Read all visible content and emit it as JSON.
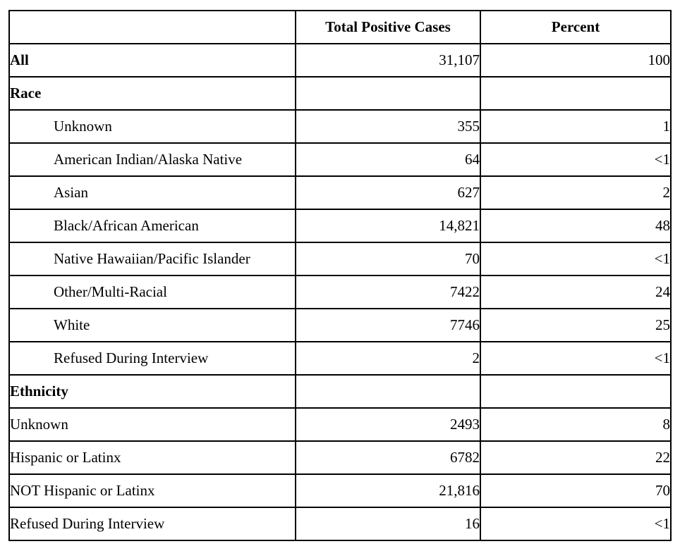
{
  "table": {
    "columns": [
      "",
      "Total Positive Cases",
      "Percent"
    ],
    "rows": [
      {
        "label": "All",
        "cases": "31,107",
        "percent": "100",
        "style": "bold"
      },
      {
        "label": "Race",
        "cases": "",
        "percent": "",
        "style": "section"
      },
      {
        "label": "Unknown",
        "cases": "355",
        "percent": "1",
        "style": "indent"
      },
      {
        "label": "American Indian/Alaska Native",
        "cases": "64",
        "percent": "<1",
        "style": "indent"
      },
      {
        "label": "Asian",
        "cases": "627",
        "percent": "2",
        "style": "indent"
      },
      {
        "label": "Black/African American",
        "cases": "14,821",
        "percent": "48",
        "style": "indent"
      },
      {
        "label": "Native Hawaiian/Pacific Islander",
        "cases": "70",
        "percent": "<1",
        "style": "indent"
      },
      {
        "label": "Other/Multi-Racial",
        "cases": "7422",
        "percent": "24",
        "style": "indent"
      },
      {
        "label": "White",
        "cases": "7746",
        "percent": "25",
        "style": "indent"
      },
      {
        "label": "Refused During Interview",
        "cases": "2",
        "percent": "<1",
        "style": "indent"
      },
      {
        "label": "Ethnicity",
        "cases": "",
        "percent": "",
        "style": "section"
      },
      {
        "label": "Unknown",
        "cases": "2493",
        "percent": "8",
        "style": "plain"
      },
      {
        "label": "Hispanic or Latinx",
        "cases": "6782",
        "percent": "22",
        "style": "plain"
      },
      {
        "label": "NOT Hispanic or Latinx",
        "cases": "21,816",
        "percent": "70",
        "style": "plain"
      },
      {
        "label": "Refused During Interview",
        "cases": "16",
        "percent": "<1",
        "style": "plain"
      }
    ],
    "colors": {
      "border": "#000000",
      "text": "#000000",
      "background": "#ffffff"
    }
  }
}
